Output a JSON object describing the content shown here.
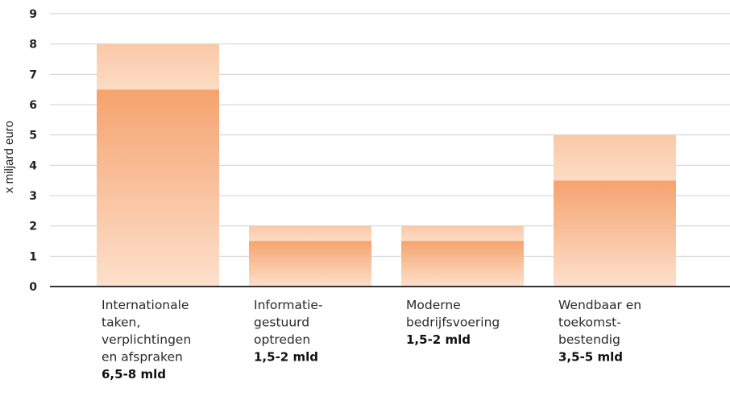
{
  "chart_data": {
    "type": "bar",
    "ylabel": "x miljard euro",
    "ylim": [
      0,
      9
    ],
    "yticks": [
      "0",
      "1",
      "2",
      "3",
      "4",
      "5",
      "6",
      "7",
      "8",
      "9"
    ],
    "grid": true,
    "categories": [
      {
        "label_lines": [
          "Internationale",
          "taken,",
          "verplichtingen",
          "en afspraken"
        ],
        "range_label": "6,5-8 mld",
        "low": 6.5,
        "high": 8
      },
      {
        "label_lines": [
          "Informatie-",
          "gestuurd",
          "optreden"
        ],
        "range_label": "1,5-2 mld",
        "low": 1.5,
        "high": 2
      },
      {
        "label_lines": [
          "Moderne",
          "bedrijfsvoering"
        ],
        "range_label": "1,5-2 mld",
        "low": 1.5,
        "high": 2
      },
      {
        "label_lines": [
          "Wendbaar en",
          "toekomst-",
          "bestendig"
        ],
        "range_label": "3,5-5 mld",
        "low": 3.5,
        "high": 5
      }
    ],
    "colors": {
      "lower_top": "#f5a36e",
      "lower_bottom": "#fde0cc",
      "upper_top": "#f9c9a6",
      "upper_bottom": "#fddcc5",
      "gridline": "#d0d0d0",
      "axis": "#333333"
    }
  }
}
